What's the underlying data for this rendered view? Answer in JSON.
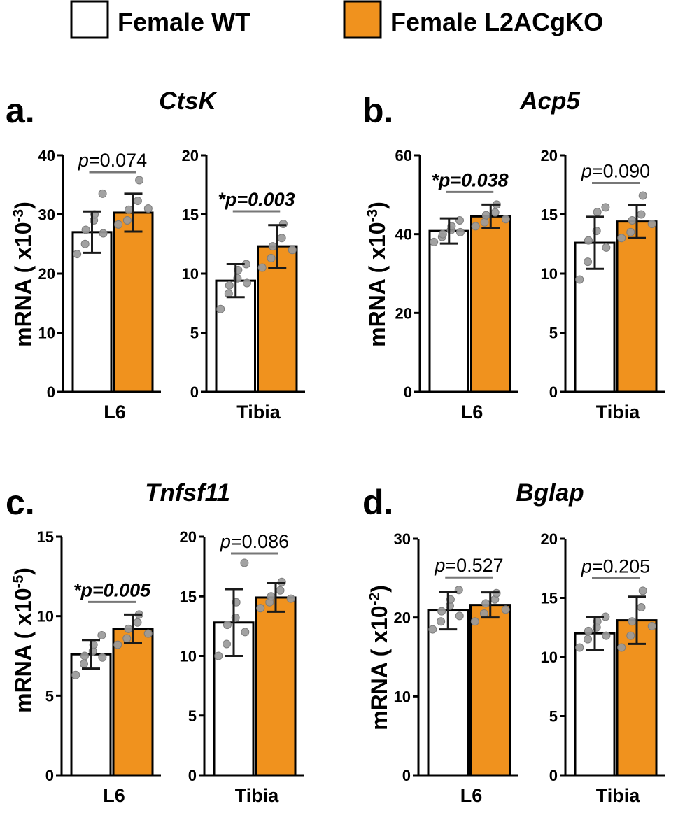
{
  "legend": {
    "items": [
      {
        "label": "Female WT",
        "color": "#ffffff"
      },
      {
        "label": "Female L2ACgKO",
        "color": "#f0921e"
      }
    ]
  },
  "colors": {
    "ko": "#f0921e",
    "wt": "#ffffff",
    "dot": "#9a9a9a",
    "bracket": "#777777"
  },
  "chart_data": [
    {
      "type": "bar",
      "panel_label": "a.",
      "gene": "CtsK",
      "ylabel": "mRNA ( x10",
      "ylabel_exp": "-3",
      "ylabel_close": ")",
      "subplots": [
        {
          "xlabel": "L6",
          "ylim": [
            0,
            40
          ],
          "yticks": [
            "0",
            "10",
            "20",
            "30",
            "40"
          ],
          "p_text": "p=0.074",
          "p_prefix": "",
          "p_italic": "p",
          "p_rest": "=0.074",
          "significant": false,
          "bars": [
            {
              "group": "Female WT",
              "mean": 27.0,
              "sd": 3.5,
              "points": [
                23.3,
                25.0,
                27.4,
                29.0,
                30.0,
                33.5,
                26.8
              ]
            },
            {
              "group": "Female L2ACgKO",
              "mean": 30.3,
              "sd": 3.2,
              "points": [
                28.3,
                29.0,
                30.8,
                32.3,
                35.8,
                31.0
              ]
            }
          ]
        },
        {
          "xlabel": "Tibia",
          "ylim": [
            0,
            20
          ],
          "yticks": [
            "0",
            "5",
            "10",
            "15",
            "20"
          ],
          "p_text": "*p=0.003",
          "p_prefix": "*",
          "p_italic": "p",
          "p_rest": "=0.003",
          "significant": true,
          "bars": [
            {
              "group": "Female WT",
              "mean": 9.4,
              "sd": 1.4,
              "points": [
                7.0,
                8.3,
                9.0,
                9.6,
                10.3,
                10.8,
                9.2
              ]
            },
            {
              "group": "Female L2ACgKO",
              "mean": 12.3,
              "sd": 1.8,
              "points": [
                10.5,
                11.3,
                12.3,
                13.0,
                14.2,
                12.0
              ]
            }
          ]
        }
      ]
    },
    {
      "type": "bar",
      "panel_label": "b.",
      "gene": "Acp5",
      "ylabel": "mRNA ( x10",
      "ylabel_exp": "-3",
      "ylabel_close": ")",
      "subplots": [
        {
          "xlabel": "L6",
          "ylim": [
            0,
            60
          ],
          "yticks": [
            "0",
            "20",
            "40",
            "60"
          ],
          "p_text": "*p=0.038",
          "p_prefix": "*",
          "p_italic": "p",
          "p_rest": "=0.038",
          "significant": true,
          "bars": [
            {
              "group": "Female WT",
              "mean": 40.8,
              "sd": 3.2,
              "points": [
                38.0,
                39.3,
                40.0,
                41.0,
                42.0,
                43.5,
                40.5
              ]
            },
            {
              "group": "Female L2ACgKO",
              "mean": 44.5,
              "sd": 3.0,
              "points": [
                42.0,
                43.0,
                44.8,
                45.5,
                47.5,
                43.8
              ]
            }
          ]
        },
        {
          "xlabel": "Tibia",
          "ylim": [
            0,
            20
          ],
          "yticks": [
            "0",
            "5",
            "10",
            "15",
            "20"
          ],
          "p_text": "p=0.090",
          "p_prefix": "",
          "p_italic": "p",
          "p_rest": "=0.090",
          "significant": false,
          "bars": [
            {
              "group": "Female WT",
              "mean": 12.6,
              "sd": 2.2,
              "points": [
                9.5,
                11.0,
                12.8,
                13.6,
                15.2,
                15.6,
                12.2
              ]
            },
            {
              "group": "Female L2ACgKO",
              "mean": 14.4,
              "sd": 1.4,
              "points": [
                13.0,
                13.5,
                14.5,
                15.0,
                16.6,
                14.2
              ]
            }
          ]
        }
      ]
    },
    {
      "type": "bar",
      "panel_label": "c.",
      "gene": "Tnfsf11",
      "ylabel": "mRNA ( x10",
      "ylabel_exp": "-5",
      "ylabel_close": ")",
      "subplots": [
        {
          "xlabel": "L6",
          "ylim": [
            0,
            15
          ],
          "yticks": [
            "0",
            "5",
            "10",
            "15"
          ],
          "p_text": "*p=0.005",
          "p_prefix": "*",
          "p_italic": "p",
          "p_rest": "=0.005",
          "significant": true,
          "bars": [
            {
              "group": "Female WT",
              "mean": 7.6,
              "sd": 0.9,
              "points": [
                6.3,
                7.0,
                7.5,
                7.8,
                8.2,
                8.8,
                7.4
              ]
            },
            {
              "group": "Female L2ACgKO",
              "mean": 9.2,
              "sd": 0.9,
              "points": [
                8.2,
                8.6,
                9.2,
                9.6,
                10.1,
                8.9
              ]
            }
          ]
        },
        {
          "xlabel": "Tibia",
          "ylim": [
            0,
            20
          ],
          "yticks": [
            "0",
            "5",
            "10",
            "15",
            "20"
          ],
          "p_text": "p=0.086",
          "p_prefix": "",
          "p_italic": "p",
          "p_rest": "=0.086",
          "significant": false,
          "bars": [
            {
              "group": "Female WT",
              "mean": 12.8,
              "sd": 2.8,
              "points": [
                10.0,
                11.0,
                12.6,
                13.2,
                14.5,
                17.8,
                12.0
              ]
            },
            {
              "group": "Female L2ACgKO",
              "mean": 14.9,
              "sd": 1.2,
              "points": [
                14.0,
                14.5,
                15.0,
                15.5,
                16.2,
                14.8
              ]
            }
          ]
        }
      ]
    },
    {
      "type": "bar",
      "panel_label": "d.",
      "gene": "Bglap",
      "ylabel": "mRNA ( x10",
      "ylabel_exp": "-2",
      "ylabel_close": ")",
      "subplots": [
        {
          "xlabel": "L6",
          "ylim": [
            0,
            30
          ],
          "yticks": [
            "0",
            "10",
            "20",
            "30"
          ],
          "p_text": "p=0.527",
          "p_prefix": "",
          "p_italic": "p",
          "p_rest": "=0.527",
          "significant": false,
          "bars": [
            {
              "group": "Female WT",
              "mean": 20.9,
              "sd": 2.4,
              "points": [
                18.5,
                19.5,
                20.8,
                21.5,
                22.3,
                23.5,
                20.2
              ]
            },
            {
              "group": "Female L2ACgKO",
              "mean": 21.6,
              "sd": 1.6,
              "points": [
                19.5,
                20.5,
                21.8,
                22.3,
                23.1,
                21.0
              ]
            }
          ]
        },
        {
          "xlabel": "Tibia",
          "ylim": [
            0,
            20
          ],
          "yticks": [
            "0",
            "5",
            "10",
            "15",
            "20"
          ],
          "p_text": "p=0.205",
          "p_prefix": "",
          "p_italic": "p",
          "p_rest": "=0.205",
          "significant": false,
          "bars": [
            {
              "group": "Female WT",
              "mean": 12.0,
              "sd": 1.4,
              "points": [
                10.8,
                11.5,
                12.2,
                12.5,
                13.0,
                13.4,
                11.8
              ]
            },
            {
              "group": "Female L2ACgKO",
              "mean": 13.1,
              "sd": 2.0,
              "points": [
                10.8,
                11.8,
                13.0,
                14.2,
                15.6,
                12.6
              ]
            }
          ]
        }
      ]
    }
  ]
}
